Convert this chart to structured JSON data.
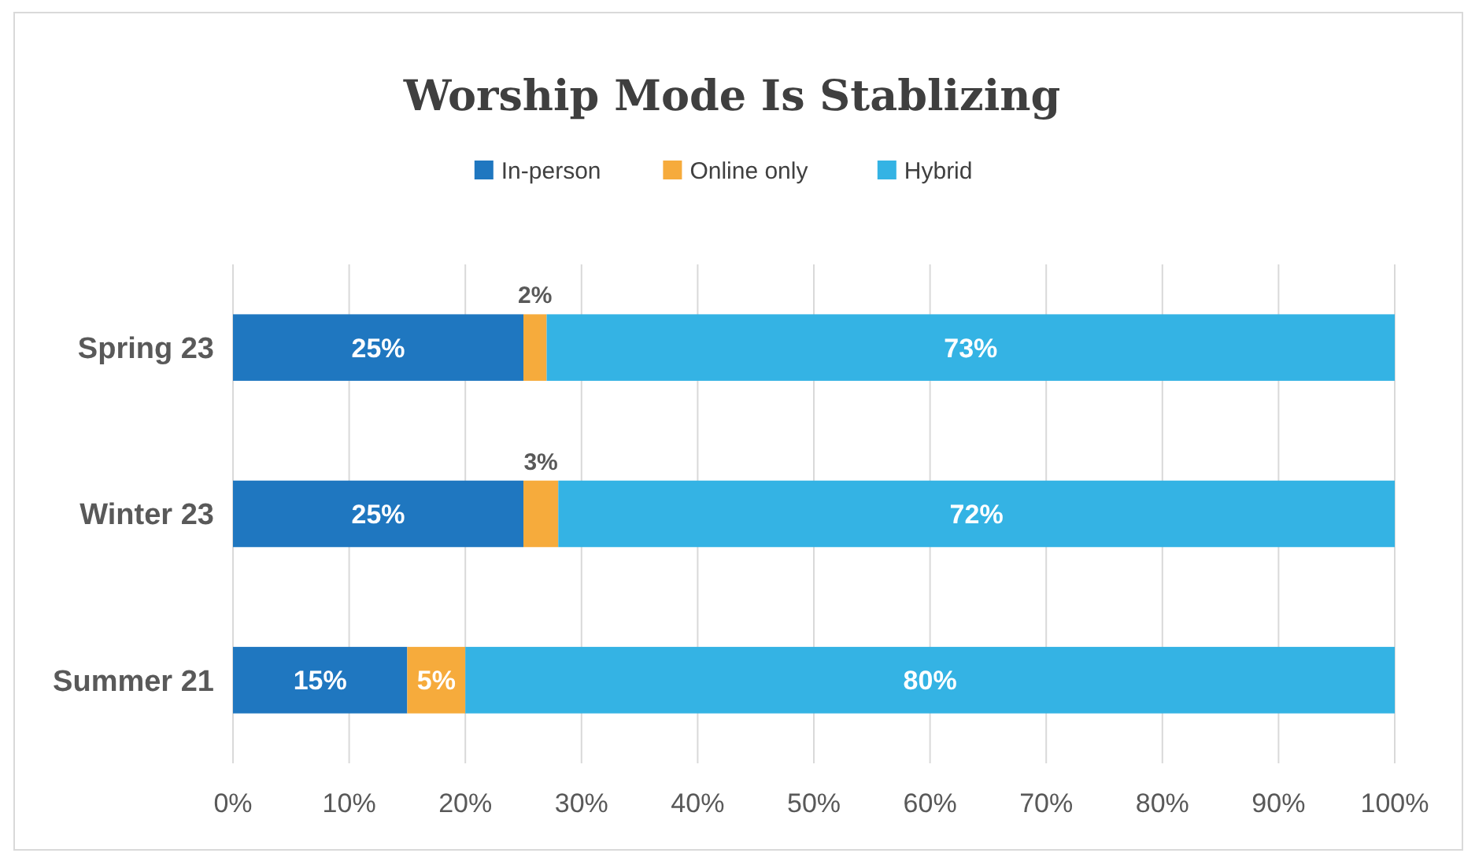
{
  "chart_data": {
    "type": "bar",
    "title": "Worship Mode Is Stablizing",
    "orientation": "horizontal",
    "stacked": true,
    "categories": [
      "Spring 23",
      "Winter 23",
      "Summer 21"
    ],
    "series": [
      {
        "name": "In-person",
        "color": "#1f77c0",
        "values": [
          25,
          25,
          15
        ],
        "value_labels": [
          "25%",
          "25%",
          "15%"
        ]
      },
      {
        "name": "Online only",
        "color": "#f6ab3c",
        "values": [
          2,
          3,
          5
        ],
        "value_labels": [
          "2%",
          "3%",
          "5%"
        ]
      },
      {
        "name": "Hybrid",
        "color": "#34b3e4",
        "values": [
          73,
          72,
          80
        ],
        "value_labels": [
          "73%",
          "72%",
          "80%"
        ]
      }
    ],
    "xlim": [
      0,
      100
    ],
    "xticks": [
      {
        "value": 0,
        "label": "0%"
      },
      {
        "value": 10,
        "label": "10%"
      },
      {
        "value": 20,
        "label": "20%"
      },
      {
        "value": 30,
        "label": "30%"
      },
      {
        "value": 40,
        "label": "40%"
      },
      {
        "value": 50,
        "label": "50%"
      },
      {
        "value": 60,
        "label": "60%"
      },
      {
        "value": 70,
        "label": "70%"
      },
      {
        "value": 80,
        "label": "80%"
      },
      {
        "value": 90,
        "label": "90%"
      },
      {
        "value": 100,
        "label": "100%"
      }
    ],
    "grid": "x",
    "legend": "top"
  }
}
